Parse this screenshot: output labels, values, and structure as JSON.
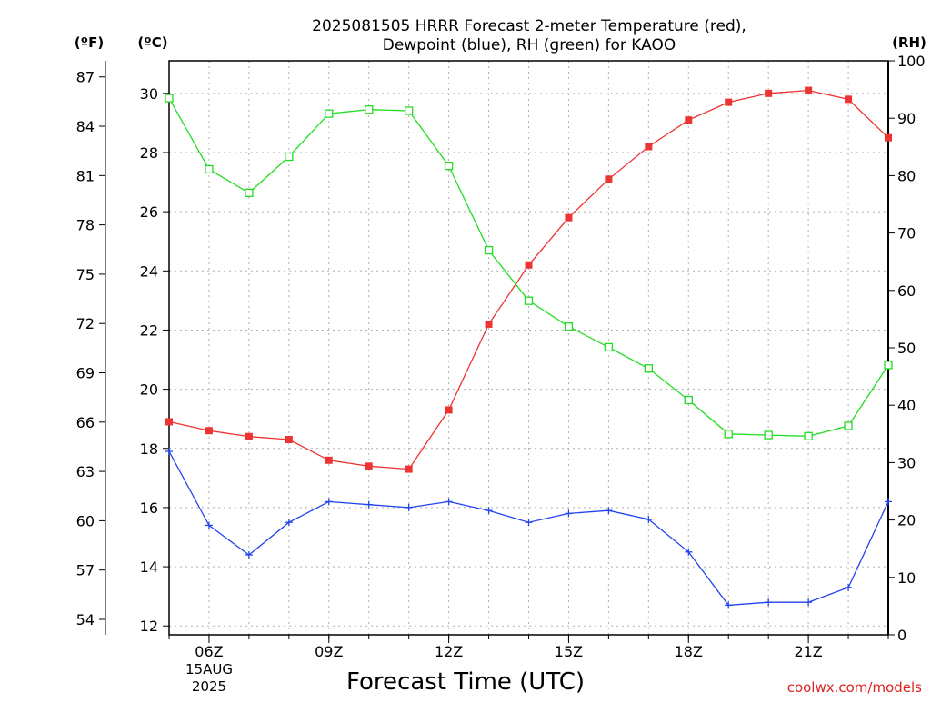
{
  "title_line1": "2025081505 HRRR Forecast 2-meter Temperature (red),",
  "title_line2": "Dewpoint (blue), RH (green) for KAOO",
  "left_outer_unit": "(ºF)",
  "left_inner_unit": "(ºC)",
  "right_unit": "(RH)",
  "xlabel": "Forecast Time (UTC)",
  "watermark": "coolwx.com/models",
  "date_label": [
    "15AUG",
    "2025"
  ],
  "colors": {
    "temperature": "#ee3333",
    "dewpoint": "#2244ee",
    "rh": "#22dd22",
    "grid": "#b0b0b0"
  },
  "chart_data": {
    "type": "line",
    "x_unit": "hour UTC, 15 Aug 2025",
    "x": [
      5,
      6,
      7,
      8,
      9,
      10,
      11,
      12,
      13,
      14,
      15,
      16,
      17,
      18,
      19,
      20,
      21,
      22,
      23
    ],
    "xlim": [
      5,
      23
    ],
    "x_ticks": [
      {
        "x": 6,
        "label": "06Z"
      },
      {
        "x": 9,
        "label": "09Z"
      },
      {
        "x": 12,
        "label": "12Z"
      },
      {
        "x": 15,
        "label": "15Z"
      },
      {
        "x": 18,
        "label": "18Z"
      },
      {
        "x": 21,
        "label": "21Z"
      }
    ],
    "y_left": {
      "unit": "°C",
      "ylim": [
        11.7,
        31.1
      ],
      "ticks": [
        12,
        14,
        16,
        18,
        20,
        22,
        24,
        26,
        28,
        30
      ]
    },
    "y_left_outer": {
      "unit": "°F",
      "ticks": [
        54,
        57,
        60,
        63,
        66,
        69,
        72,
        75,
        78,
        81,
        84,
        87
      ]
    },
    "y_right": {
      "unit": "RH %",
      "ylim": [
        0,
        100
      ],
      "ticks": [
        0,
        10,
        20,
        30,
        40,
        50,
        60,
        70,
        80,
        90,
        100
      ]
    },
    "grid": true,
    "series": [
      {
        "name": "Temperature",
        "axis": "left",
        "color": "#ee3333",
        "marker": "filled-square",
        "values": [
          18.9,
          18.6,
          18.4,
          18.3,
          17.6,
          17.4,
          17.3,
          19.3,
          22.2,
          24.2,
          25.8,
          27.1,
          28.2,
          29.1,
          29.7,
          30.0,
          30.1,
          29.8,
          28.5
        ]
      },
      {
        "name": "Dewpoint",
        "axis": "left",
        "color": "#2244ee",
        "marker": "plus",
        "values": [
          17.9,
          15.4,
          14.4,
          15.5,
          16.2,
          16.1,
          16.0,
          16.2,
          15.9,
          15.5,
          15.8,
          15.9,
          15.6,
          14.5,
          12.7,
          12.8,
          12.8,
          13.3,
          16.2
        ]
      },
      {
        "name": "RH",
        "axis": "right",
        "color": "#22dd22",
        "marker": "open-square",
        "values": [
          93.5,
          81.1,
          77.0,
          83.3,
          90.8,
          91.5,
          91.3,
          81.7,
          67.0,
          58.2,
          53.7,
          50.1,
          46.4,
          40.9,
          35.0,
          34.8,
          34.6,
          36.4,
          47.0
        ]
      }
    ]
  }
}
